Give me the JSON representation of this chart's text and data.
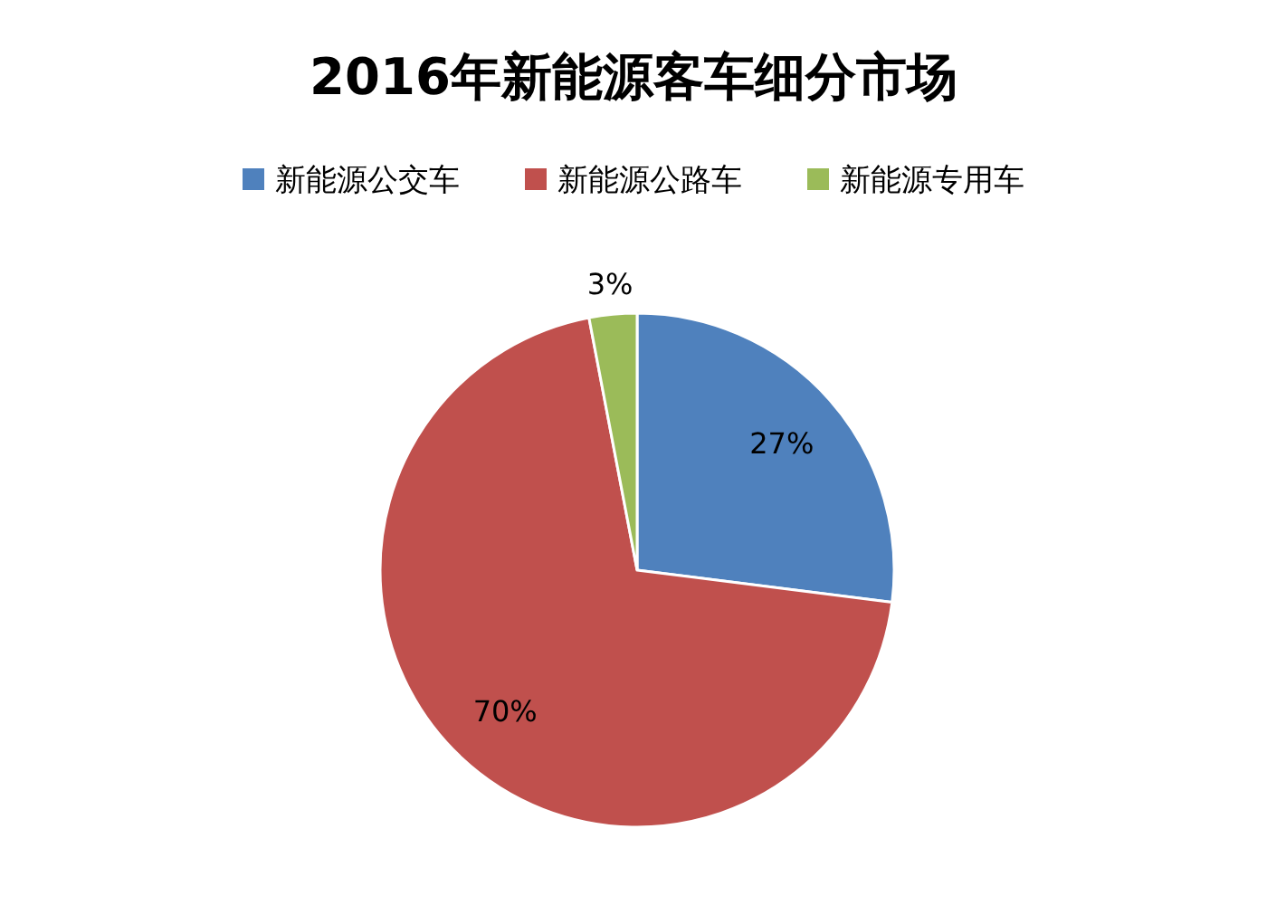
{
  "chart_data": {
    "type": "pie",
    "title": "2016年新能源客车细分市场",
    "categories": [
      "新能源公交车",
      "新能源公路车",
      "新能源专用车"
    ],
    "values": [
      27,
      70,
      3
    ],
    "value_labels": [
      "27%",
      "70%",
      "3%"
    ],
    "colors": [
      "#4f81bd",
      "#c0504d",
      "#9bbb59"
    ],
    "legend": "top"
  }
}
